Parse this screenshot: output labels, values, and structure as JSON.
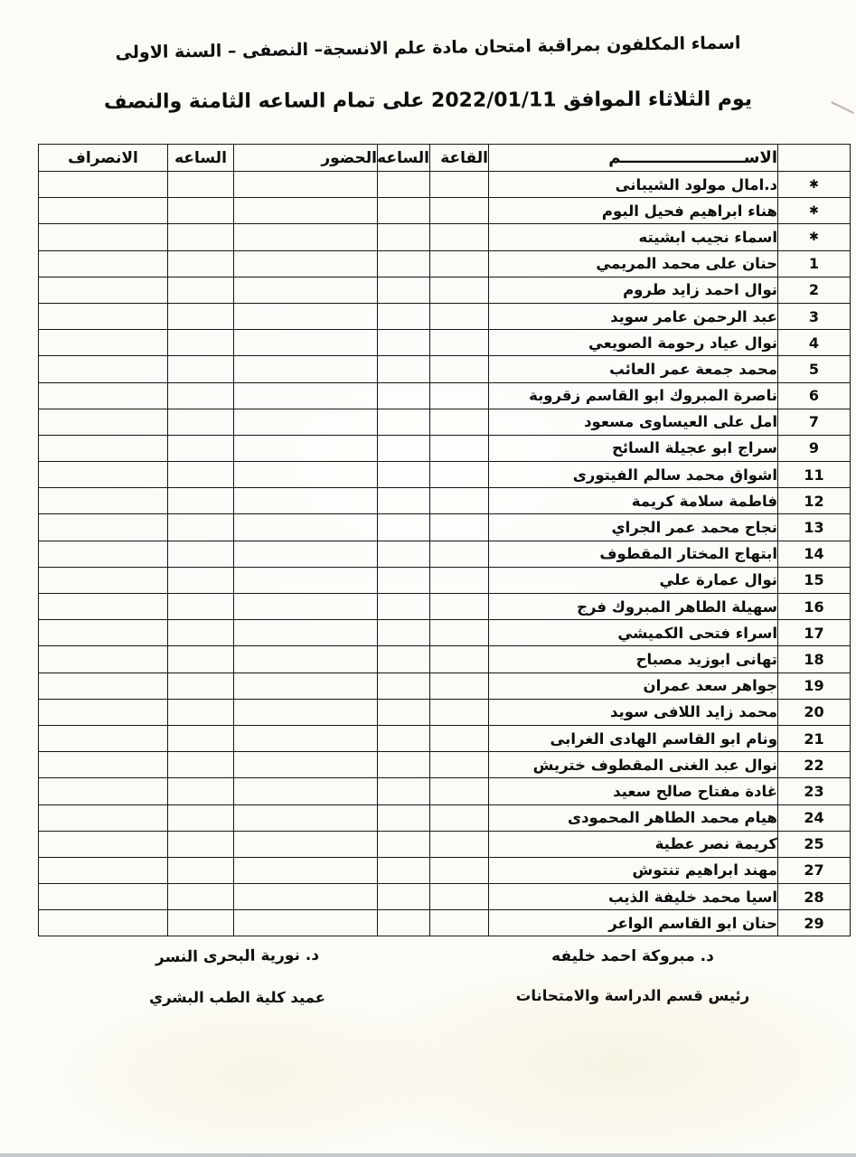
{
  "header": {
    "line1": "اسماء المكلفون بمراقبة امتحان مادة علم الانسجة– النصفى  –  السنة  الاولى",
    "line2": "يوم الثلاثاء الموافق 2022/01/11 على تمام الساعه الثامنة والنصف"
  },
  "table": {
    "columns": {
      "number": "",
      "name": "الاســــــــــــــــــــــم",
      "hall": "القاعة",
      "hour_in": "الساعه",
      "attendance": "الحضور",
      "hour_out": "الساعه",
      "departure": "الانصراف"
    },
    "rows": [
      {
        "no": "*",
        "name": "د.امال مولود الشيبانى"
      },
      {
        "no": "*",
        "name": "هناء ابراهيم فحيل البوم"
      },
      {
        "no": "*",
        "name": "اسماء نجيب ابشيته"
      },
      {
        "no": "1",
        "name": "حنان على محمد المريمي"
      },
      {
        "no": "2",
        "name": "نوال احمد زايد طروم"
      },
      {
        "no": "3",
        "name": "عبد الرحمن عامر سويد"
      },
      {
        "no": "4",
        "name": "نوال عياد رحومة الصويعي"
      },
      {
        "no": "5",
        "name": "محمد جمعة عمر العائب"
      },
      {
        "no": "6",
        "name": "ناصرة المبروك ابو القاسم زقروبة"
      },
      {
        "no": "7",
        "name": "امل على العيساوى مسعود"
      },
      {
        "no": "9",
        "name": "سراج ابو عجيلة السائح"
      },
      {
        "no": "11",
        "name": "اشواق محمد سالم الفيتورى"
      },
      {
        "no": "12",
        "name": "فاطمة سلامة كريمة"
      },
      {
        "no": "13",
        "name": "نجاح محمد عمر الجراي"
      },
      {
        "no": "14",
        "name": "ابتهاج المختار المقطوف"
      },
      {
        "no": "15",
        "name": "نوال عمارة علي"
      },
      {
        "no": "16",
        "name": "سهيلة الطاهر المبروك فرج"
      },
      {
        "no": "17",
        "name": "اسراء فتحى الكميشي"
      },
      {
        "no": "18",
        "name": "تهانى ابوزيد مصباح"
      },
      {
        "no": "19",
        "name": "جواهر سعد عمران"
      },
      {
        "no": "20",
        "name": "محمد زايد اللافى سويد"
      },
      {
        "no": "21",
        "name": "ونام ابو القاسم الهادى الغرابى"
      },
      {
        "no": "22",
        "name": "نوال عبد الغنى المقطوف ختريش"
      },
      {
        "no": "23",
        "name": "غادة مفتاح صالح سعيد"
      },
      {
        "no": "24",
        "name": "هيام محمد الطاهر المحمودى"
      },
      {
        "no": "25",
        "name": "كريمة نصر عطية"
      },
      {
        "no": "27",
        "name": "مهند ابراهيم تنتوش"
      },
      {
        "no": "28",
        "name": "اسيا محمد خليفة الذيب"
      },
      {
        "no": "29",
        "name": "حنان ابو القاسم الواعر"
      }
    ]
  },
  "footer": {
    "right": {
      "name": "د. مبروكة احمد خليفه",
      "title": "رئيس قسم الدراسة والامتحانات"
    },
    "left": {
      "name": "د. نورية البحرى النسر",
      "title": "عميد كلية الطب البشري"
    }
  }
}
